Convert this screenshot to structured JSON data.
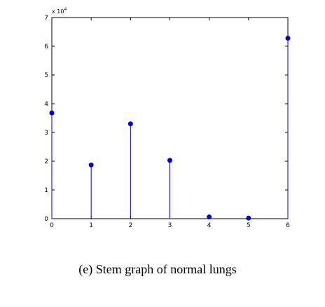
{
  "caption": "(e) Stem graph of normal lungs",
  "chart_data": {
    "type": "stem",
    "x": [
      0,
      1,
      2,
      3,
      4,
      5,
      6
    ],
    "values": [
      36800,
      18700,
      33000,
      20300,
      600,
      200,
      62800
    ],
    "xlim": [
      0,
      6
    ],
    "ylim": [
      0,
      70000
    ],
    "x_ticks": [
      "0",
      "1",
      "2",
      "3",
      "4",
      "5",
      "6"
    ],
    "y_ticks": [
      "0",
      "1",
      "2",
      "3",
      "4",
      "5",
      "6",
      "7"
    ],
    "y_multiplier": {
      "base": "x 10",
      "exponent": "4"
    },
    "grid": false,
    "marker_color": "#0000cc",
    "stem_color": "#0000cc"
  }
}
